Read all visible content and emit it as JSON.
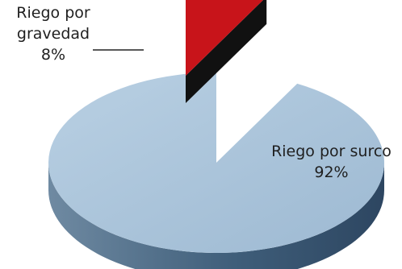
{
  "chart_data": {
    "type": "pie",
    "style": "3d-exploded",
    "slices": [
      {
        "label_line1": "Riego por",
        "label_line2": "gravedad",
        "percent_text": "8%",
        "value": 8,
        "color": "#c8141a",
        "exploded": true
      },
      {
        "label_line1": "Riego por surco",
        "label_line2": "",
        "percent_text": "92%",
        "value": 92,
        "color": "#a9c4db",
        "exploded": false
      }
    ],
    "title": "",
    "legend": "none"
  }
}
